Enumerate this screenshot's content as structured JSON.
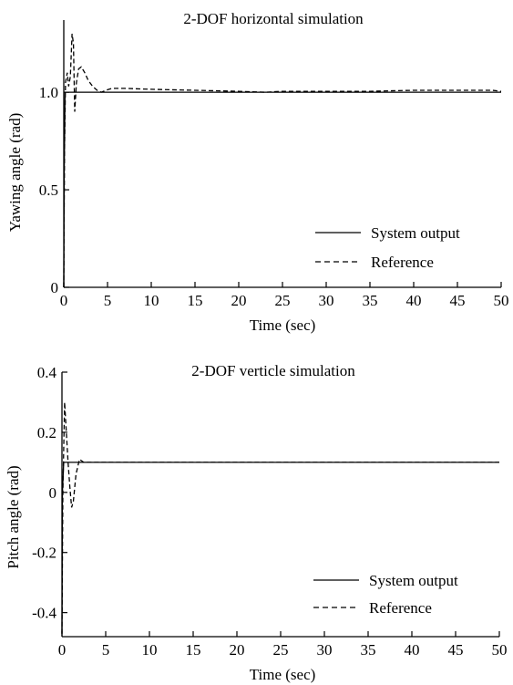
{
  "chart_data": [
    {
      "type": "line",
      "title": "2-DOF horizontal simulation",
      "xlabel": "Time (sec)",
      "ylabel": "Yawing angle (rad)",
      "xlim": [
        0,
        50
      ],
      "ylim": [
        0,
        1.37
      ],
      "xticks": [
        0,
        5,
        10,
        15,
        20,
        25,
        30,
        35,
        40,
        45,
        50
      ],
      "xtick_labels": [
        "0",
        "5",
        "10",
        "15",
        "20",
        "25",
        "30",
        "35",
        "40",
        "45",
        "50"
      ],
      "yticks": [
        0,
        0.5,
        1.0
      ],
      "ytick_labels": [
        "0",
        "0.5",
        "1.0"
      ],
      "grid": false,
      "legend_position": "bottom-right",
      "series": [
        {
          "name": "System output",
          "style": "solid",
          "x": [
            0,
            0.05,
            0.15,
            0.3,
            0.5,
            1,
            2,
            5,
            10,
            20,
            30,
            40,
            50
          ],
          "y": [
            0,
            0.6,
            1.0,
            1.0,
            1.0,
            1.0,
            1.0,
            1.0,
            1.0,
            1.0,
            1.0,
            1.0,
            1.0
          ]
        },
        {
          "name": "Reference",
          "style": "dashed",
          "x": [
            0,
            0.08,
            0.2,
            0.4,
            0.55,
            0.75,
            0.95,
            1.1,
            1.25,
            1.45,
            1.7,
            2.0,
            2.4,
            2.8,
            3.3,
            3.8,
            4.3,
            4.8,
            5.5,
            7,
            10,
            15,
            20,
            23,
            25,
            30,
            35,
            40,
            45,
            49,
            50
          ],
          "y": [
            0,
            0.7,
            1.05,
            1.1,
            1.03,
            1.08,
            1.3,
            1.25,
            0.9,
            1.05,
            1.12,
            1.13,
            1.1,
            1.06,
            1.03,
            1.01,
            1.0,
            1.01,
            1.02,
            1.02,
            1.015,
            1.01,
            1.005,
            1.0,
            1.005,
            1.005,
            1.005,
            1.01,
            1.01,
            1.01,
            1.005
          ]
        }
      ]
    },
    {
      "type": "line",
      "title": "2-DOF verticle simulation",
      "xlabel": "Time (sec)",
      "ylabel": "Pitch angle (rad)",
      "xlim": [
        0,
        50
      ],
      "ylim": [
        -0.48,
        0.4
      ],
      "xticks": [
        0,
        5,
        10,
        15,
        20,
        25,
        30,
        35,
        40,
        45,
        50
      ],
      "xtick_labels": [
        "0",
        "5",
        "10",
        "15",
        "20",
        "25",
        "30",
        "35",
        "40",
        "45",
        "50"
      ],
      "yticks": [
        -0.4,
        -0.2,
        0,
        0.2,
        0.4
      ],
      "ytick_labels": [
        "-0.4",
        "-0.2",
        "0",
        "0.2",
        "0.4"
      ],
      "grid": false,
      "legend_position": "bottom-right",
      "series": [
        {
          "name": "System output",
          "style": "solid",
          "x": [
            0,
            0.05,
            0.2,
            0.4,
            1,
            2,
            5,
            10,
            20,
            30,
            40,
            50
          ],
          "y": [
            -0.47,
            0.0,
            0.1,
            0.1,
            0.1,
            0.1,
            0.1,
            0.1,
            0.1,
            0.1,
            0.1,
            0.1
          ]
        },
        {
          "name": "Reference",
          "style": "dashed",
          "x": [
            0,
            0.1,
            0.3,
            0.5,
            0.7,
            0.9,
            1.1,
            1.3,
            1.6,
            2.0,
            2.5,
            3,
            5,
            10,
            20,
            30,
            40,
            50
          ],
          "y": [
            -0.47,
            0.0,
            0.3,
            0.2,
            0.1,
            0.02,
            -0.05,
            -0.03,
            0.06,
            0.11,
            0.1,
            0.1,
            0.1,
            0.1,
            0.1,
            0.1,
            0.1,
            0.1
          ]
        }
      ]
    }
  ]
}
